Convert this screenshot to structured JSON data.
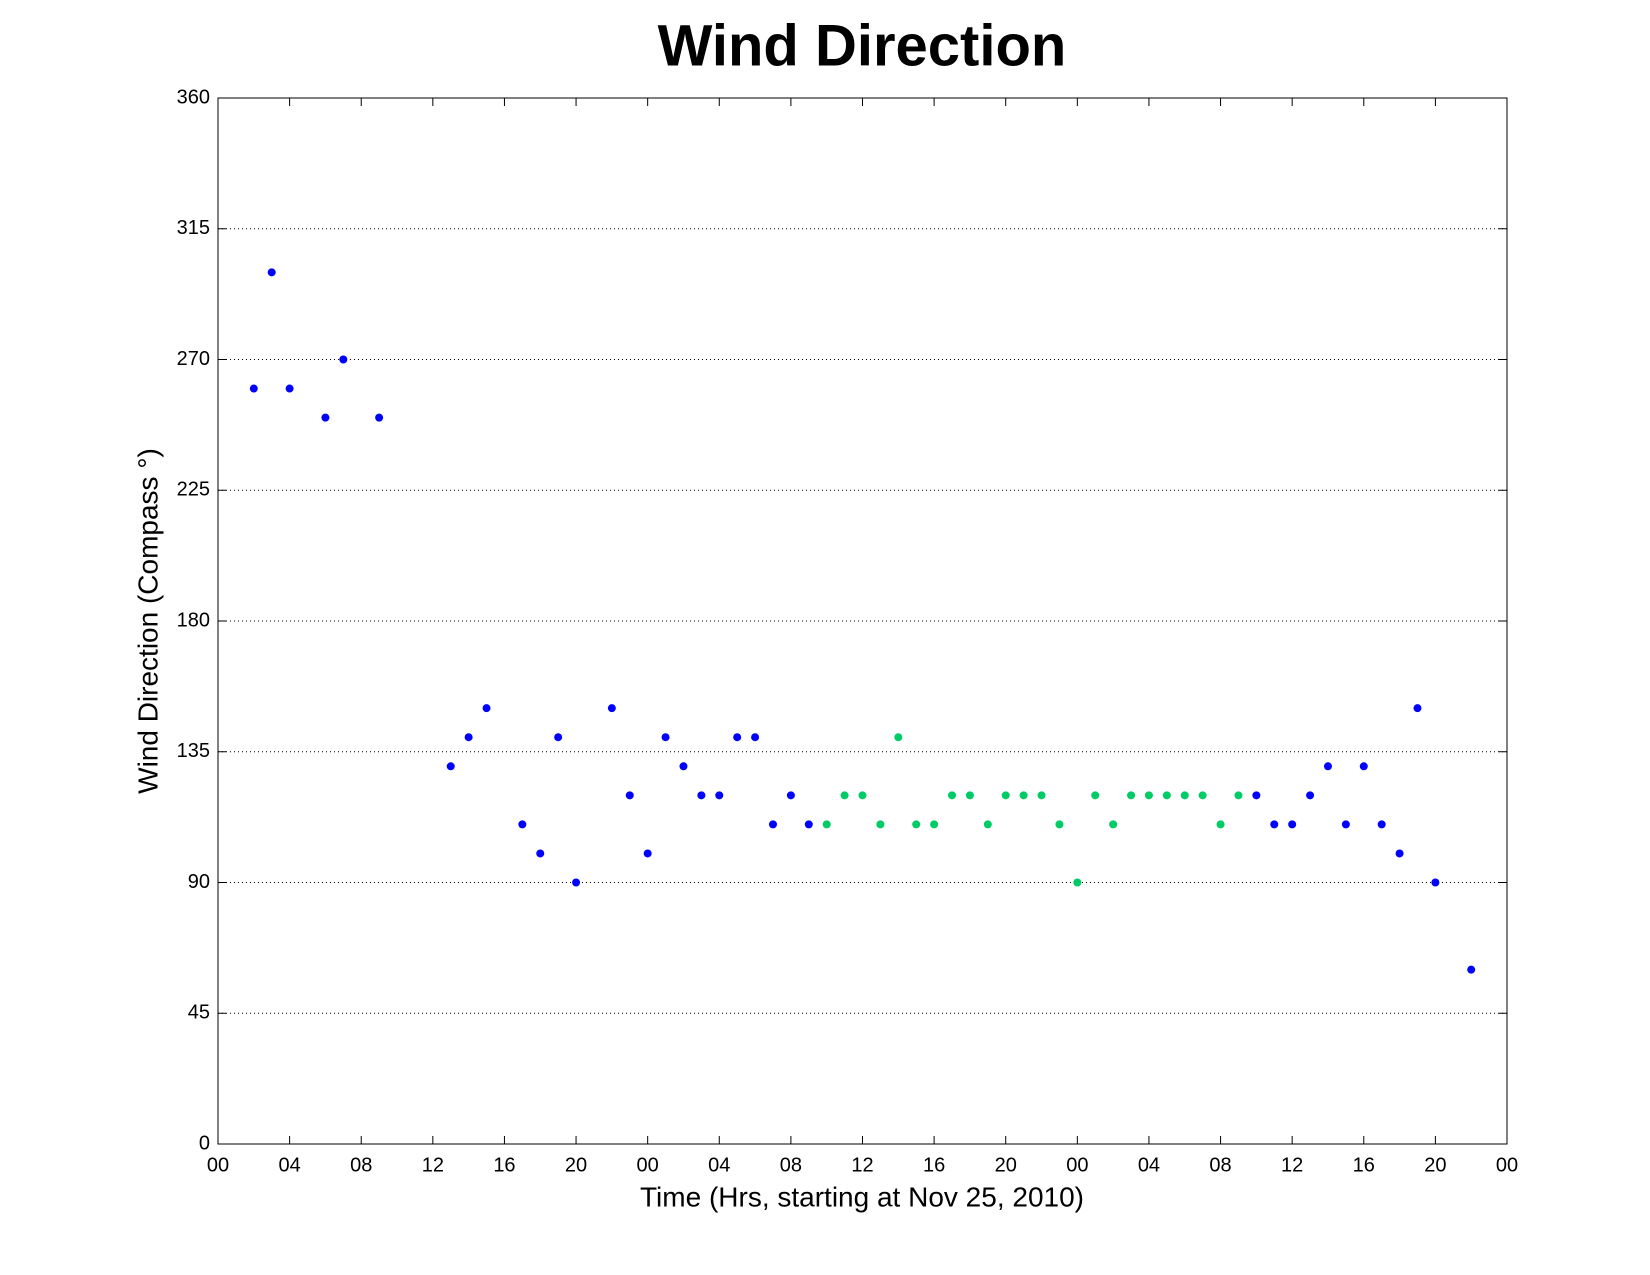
{
  "chart_data": {
    "type": "scatter",
    "title": "Wind Direction",
    "x_label": "Time (Hrs, starting at Nov 25, 2010)",
    "y_label": "Wind Direction (Compass °)",
    "xlim": [
      0,
      72
    ],
    "ylim": [
      0,
      360
    ],
    "xticks": [
      {
        "value": 0,
        "label": "00"
      },
      {
        "value": 4,
        "label": "04"
      },
      {
        "value": 8,
        "label": "08"
      },
      {
        "value": 12,
        "label": "12"
      },
      {
        "value": 16,
        "label": "16"
      },
      {
        "value": 20,
        "label": "20"
      },
      {
        "value": 24,
        "label": "00"
      },
      {
        "value": 28,
        "label": "04"
      },
      {
        "value": 32,
        "label": "08"
      },
      {
        "value": 36,
        "label": "12"
      },
      {
        "value": 40,
        "label": "16"
      },
      {
        "value": 44,
        "label": "20"
      },
      {
        "value": 48,
        "label": "00"
      },
      {
        "value": 52,
        "label": "04"
      },
      {
        "value": 56,
        "label": "08"
      },
      {
        "value": 60,
        "label": "12"
      },
      {
        "value": 64,
        "label": "16"
      },
      {
        "value": 68,
        "label": "20"
      },
      {
        "value": 72,
        "label": "00"
      }
    ],
    "yticks": [
      0,
      45,
      90,
      135,
      180,
      225,
      270,
      315,
      360
    ],
    "grid": true,
    "series": [
      {
        "color": "#0000ff",
        "x": [
          2,
          3,
          4,
          6,
          7,
          9,
          13,
          14,
          15,
          17,
          18,
          19,
          20,
          22,
          23,
          24,
          25,
          26,
          27,
          28,
          29,
          30,
          31,
          32,
          33,
          58,
          59,
          60,
          61,
          62,
          63,
          64,
          65,
          66,
          67,
          68,
          70
        ],
        "values": [
          260,
          300,
          260,
          250,
          270,
          250,
          130,
          140,
          150,
          110,
          100,
          140,
          90,
          150,
          120,
          100,
          140,
          130,
          120,
          120,
          140,
          140,
          110,
          120,
          110,
          120,
          110,
          110,
          120,
          130,
          110,
          130,
          110,
          100,
          150,
          90,
          60
        ]
      },
      {
        "color": "#00cc66",
        "x": [
          34,
          35,
          36,
          37,
          38,
          39,
          40,
          41,
          42,
          43,
          44,
          45,
          46,
          47,
          48,
          49,
          50,
          51,
          52,
          53,
          54,
          55,
          56,
          57
        ],
        "values": [
          110,
          120,
          120,
          110,
          140,
          110,
          110,
          120,
          120,
          110,
          120,
          120,
          120,
          110,
          90,
          120,
          110,
          120,
          120,
          120,
          120,
          120,
          110,
          120
        ]
      }
    ]
  }
}
